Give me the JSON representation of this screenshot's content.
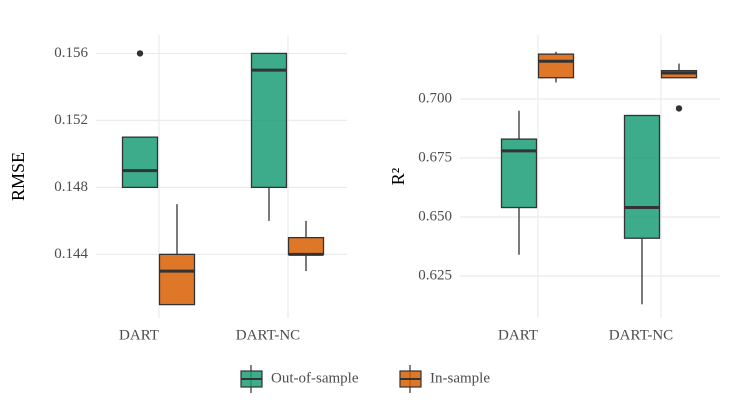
{
  "chart_data": [
    {
      "type": "box",
      "ylabel": "RMSE",
      "categories": [
        "DART",
        "DART-NC"
      ],
      "series": [
        {
          "name": "Out-of-sample",
          "color": "#1b9e77",
          "boxes": [
            {
              "min": 0.148,
              "q1": 0.148,
              "median": 0.149,
              "q3": 0.151,
              "max": 0.151,
              "outliers": [
                0.156
              ]
            },
            {
              "min": 0.146,
              "q1": 0.148,
              "median": 0.155,
              "q3": 0.156,
              "max": 0.156,
              "outliers": []
            }
          ]
        },
        {
          "name": "In-sample",
          "color": "#d95f02",
          "boxes": [
            {
              "min": 0.141,
              "q1": 0.141,
              "median": 0.143,
              "q3": 0.144,
              "max": 0.147,
              "outliers": []
            },
            {
              "min": 0.143,
              "q1": 0.144,
              "median": 0.144,
              "q3": 0.145,
              "max": 0.146,
              "outliers": []
            }
          ]
        }
      ],
      "ylim": [
        0.1402,
        0.1571
      ],
      "yticks": [
        0.144,
        0.148,
        0.152,
        0.156
      ],
      "grid": true
    },
    {
      "type": "box",
      "ylabel": "R²",
      "categories": [
        "DART",
        "DART-NC"
      ],
      "series": [
        {
          "boxes": [
            {
              "min": 0.634,
              "q1": 0.654,
              "median": 0.678,
              "q3": 0.683,
              "max": 0.695,
              "outliers": []
            },
            {
              "min": 0.613,
              "q1": 0.641,
              "median": 0.654,
              "q3": 0.693,
              "max": 0.693,
              "outliers": []
            }
          ]
        },
        {
          "boxes": [
            {
              "min": 0.707,
              "q1": 0.709,
              "median": 0.716,
              "q3": 0.719,
              "max": 0.72,
              "outliers": []
            },
            {
              "min": 0.709,
              "q1": 0.709,
              "median": 0.711,
              "q3": 0.712,
              "max": 0.715,
              "outliers": [
                0.696
              ]
            }
          ]
        }
      ],
      "ylim": [
        0.6072,
        0.7271
      ],
      "yticks": [
        0.625,
        {
          "value": 0.65,
          "label": "0.650"
        },
        0.675,
        {
          "value": 0.7,
          "label": "0.700"
        }
      ],
      "grid": true
    }
  ]
}
